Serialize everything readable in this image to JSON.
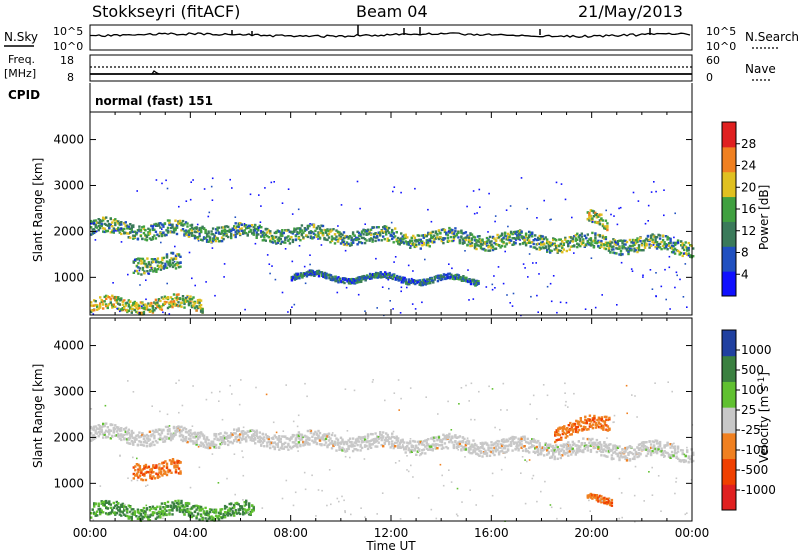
{
  "header": {
    "station": "Stokkseyri (fitACF)",
    "beam": "Beam 04",
    "date": "21/May/2013"
  },
  "noise_panel": {
    "left_label": "N.Sky",
    "right_label": "N.Search",
    "left_top_tick": "10^5",
    "left_bottom_tick": "10^0",
    "right_top_tick": "10^5",
    "right_bottom_tick": "10^0"
  },
  "freq_panel": {
    "left_label_line1": "Freq.",
    "left_label_line2": "[MHz]",
    "left_top_tick": "18",
    "left_bottom_tick": "8",
    "right_label": "Nave",
    "right_top_tick": "60",
    "right_bottom_tick": "0"
  },
  "cpid": {
    "label": "CPID",
    "value": "normal (fast) 151"
  },
  "colors": {
    "power": [
      "#1010ff",
      "#2050c0",
      "#3a7a5a",
      "#40a040",
      "#e0c020",
      "#f08020",
      "#e02020"
    ],
    "velocity": [
      "#e02020",
      "#f04000",
      "#f08020",
      "#c8c8c8",
      "#60c030",
      "#3a8040",
      "#2040a0"
    ]
  },
  "chart_data": [
    {
      "type": "heatmap",
      "title": "",
      "xlabel": "Time UT",
      "ylabel": "Slant Range [km]",
      "xlim": [
        0,
        24
      ],
      "ylim": [
        180,
        4600
      ],
      "x_ticks": [
        "00:00",
        "04:00",
        "08:00",
        "12:00",
        "16:00",
        "20:00",
        "00:00"
      ],
      "y_ticks": [
        "1000",
        "2000",
        "3000",
        "4000"
      ],
      "colorbar": {
        "label": "Power [dB]",
        "ticks": [
          "4",
          "8",
          "12",
          "16",
          "20",
          "24",
          "28"
        ],
        "range": [
          0,
          30
        ]
      },
      "scatter_bands": [
        {
          "start": 0.0,
          "end": 24.0,
          "center_start": 2100,
          "center_end": 1700,
          "width": 160,
          "level": 3
        },
        {
          "start": 0.0,
          "end": 4.5,
          "center_start": 400,
          "center_end": 450,
          "width": 140,
          "level": 4
        },
        {
          "start": 1.7,
          "end": 3.6,
          "center_start": 1350,
          "center_end": 1300,
          "width": 180,
          "level": 3
        },
        {
          "start": 8.0,
          "end": 15.5,
          "center_start": 1050,
          "center_end": 950,
          "width": 60,
          "level": 2
        },
        {
          "start": 19.8,
          "end": 20.6,
          "center_start": 2300,
          "center_end": 2200,
          "width": 130,
          "level": 4
        }
      ]
    },
    {
      "type": "heatmap",
      "title": "",
      "xlabel": "Time UT",
      "ylabel": "Slant Range [km]",
      "xlim": [
        0,
        24
      ],
      "ylim": [
        180,
        4600
      ],
      "x_ticks": [
        "00:00",
        "04:00",
        "08:00",
        "12:00",
        "16:00",
        "20:00",
        "00:00"
      ],
      "y_ticks": [
        "1000",
        "2000",
        "3000",
        "4000"
      ],
      "colorbar": {
        "label": "Velocity [m s^-1]",
        "ticks": [
          "-1000",
          "-500",
          "-100",
          "-25",
          "25",
          "100",
          "500",
          "1000"
        ]
      },
      "scatter_bands": [
        {
          "start": 0.0,
          "end": 24.0,
          "center_start": 2100,
          "center_end": 1700,
          "width": 160,
          "class": "ground"
        },
        {
          "start": 0.0,
          "end": 6.5,
          "center_start": 420,
          "center_end": 420,
          "width": 150,
          "class": "positive"
        },
        {
          "start": 1.7,
          "end": 3.6,
          "center_start": 1350,
          "center_end": 1300,
          "width": 170,
          "class": "negative"
        },
        {
          "start": 18.5,
          "end": 20.7,
          "center_start": 2150,
          "center_end": 2350,
          "width": 150,
          "class": "negative"
        },
        {
          "start": 19.8,
          "end": 20.8,
          "center_start": 650,
          "center_end": 650,
          "width": 70,
          "class": "negative"
        }
      ]
    }
  ]
}
